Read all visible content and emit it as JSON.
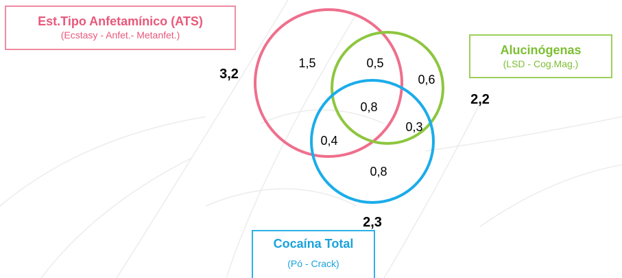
{
  "colors": {
    "ats": "#ef6f8c",
    "alucinogenas": "#8dc63f",
    "cocaina": "#1bacea",
    "watermark": "#ececec"
  },
  "categories": {
    "ats": {
      "title": "Est.Tipo Anfetamínico (ATS)",
      "subtitle": "(Ecstasy - Anfet.- Metanfet.)",
      "total": "3,2"
    },
    "alucinogenas": {
      "title": "Alucinógenas",
      "subtitle": "(LSD - Cog.Mag.)",
      "total": "2,2"
    },
    "cocaina": {
      "title": "Cocaína Total",
      "subtitle": "(Pó - Crack)",
      "total": "2,3"
    }
  },
  "regions": {
    "ats_only": "1,5",
    "ats_alu": "0,5",
    "alu_only": "0,6",
    "all_three": "0,8",
    "alu_coc": "0,3",
    "ats_coc": "0,4",
    "coc_only": "0,8"
  }
}
